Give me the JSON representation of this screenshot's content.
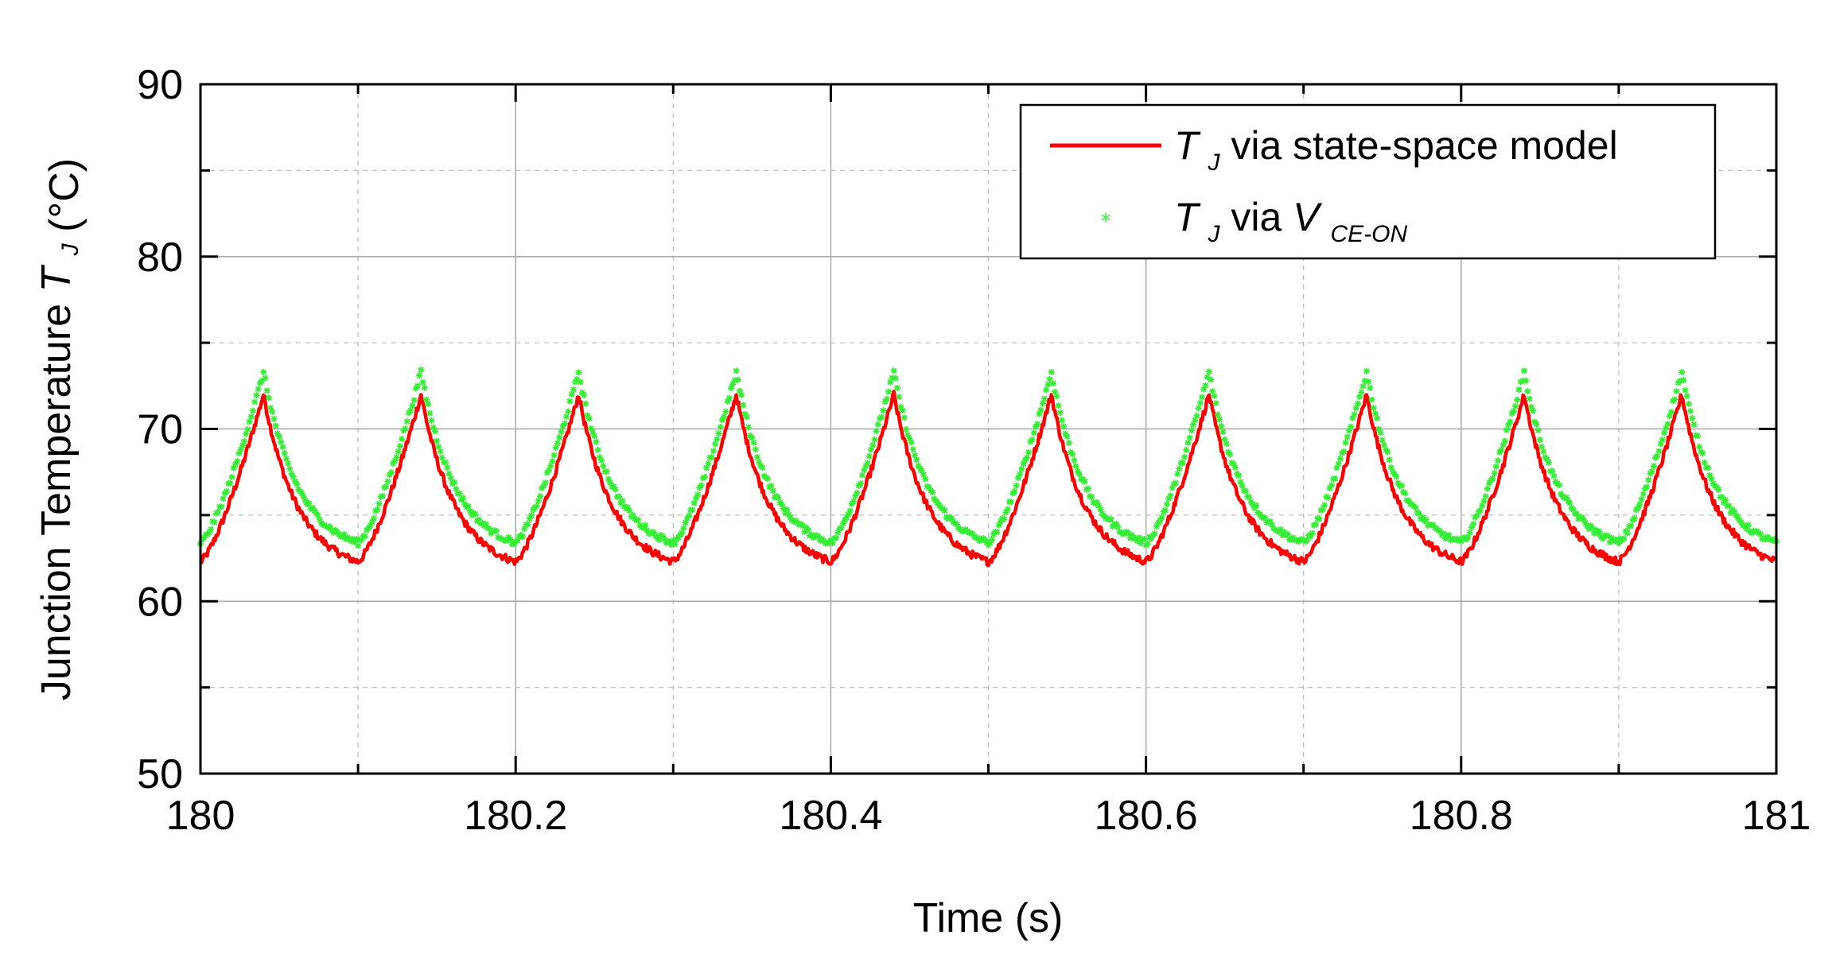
{
  "chart_data": {
    "type": "line",
    "title": "",
    "xlabel": "Time (s)",
    "ylabel": {
      "text": "Junction Temperature",
      "symbol": "T",
      "subscript": "J",
      "unit": "(°C)"
    },
    "xlim": [
      180,
      181
    ],
    "ylim": [
      50,
      90
    ],
    "x_ticks": [
      180,
      180.2,
      180.4,
      180.6,
      180.8,
      181
    ],
    "x_tick_labels": [
      "180",
      "180.2",
      "180.4",
      "180.6",
      "180.8",
      "181"
    ],
    "y_ticks": [
      50,
      60,
      70,
      80,
      90
    ],
    "y_tick_labels": [
      "50",
      "60",
      "70",
      "80",
      "90"
    ],
    "x_minor_grid": [
      180.1,
      180.3,
      180.5,
      180.7,
      180.9
    ],
    "y_minor_grid": [
      55,
      65,
      75,
      85
    ],
    "grid": true,
    "legend_position": "top-right",
    "period_s": 0.1,
    "series": [
      {
        "name": "T_J via state-space model",
        "legend_symbol": "T",
        "legend_subscript": "J",
        "legend_rest": " via state-space model",
        "style": "line",
        "color": "#ff0000",
        "min": 62.3,
        "max": 72.0,
        "peak_times": [
          180.04,
          180.14,
          180.24,
          180.34,
          180.44,
          180.54,
          180.64,
          180.74,
          180.84,
          180.94
        ],
        "trough_times": [
          180.0,
          180.1,
          180.2,
          180.3,
          180.4,
          180.5,
          180.6,
          180.7,
          180.8,
          180.9
        ]
      },
      {
        "name": "T_J via V_CE-ON",
        "legend_symbol": "T",
        "legend_subscript": "J",
        "legend_mid": " via ",
        "legend_symbol2": "V",
        "legend_subscript2": "CE-ON",
        "style": "markers",
        "marker": "asterisk",
        "color": "#33ee33",
        "min": 63.4,
        "max": 73.3,
        "peak_times": [
          180.04,
          180.14,
          180.24,
          180.34,
          180.44,
          180.54,
          180.64,
          180.74,
          180.84,
          180.94
        ],
        "trough_times": [
          180.0,
          180.1,
          180.2,
          180.3,
          180.4,
          180.5,
          180.6,
          180.7,
          180.8,
          180.9
        ]
      }
    ]
  }
}
